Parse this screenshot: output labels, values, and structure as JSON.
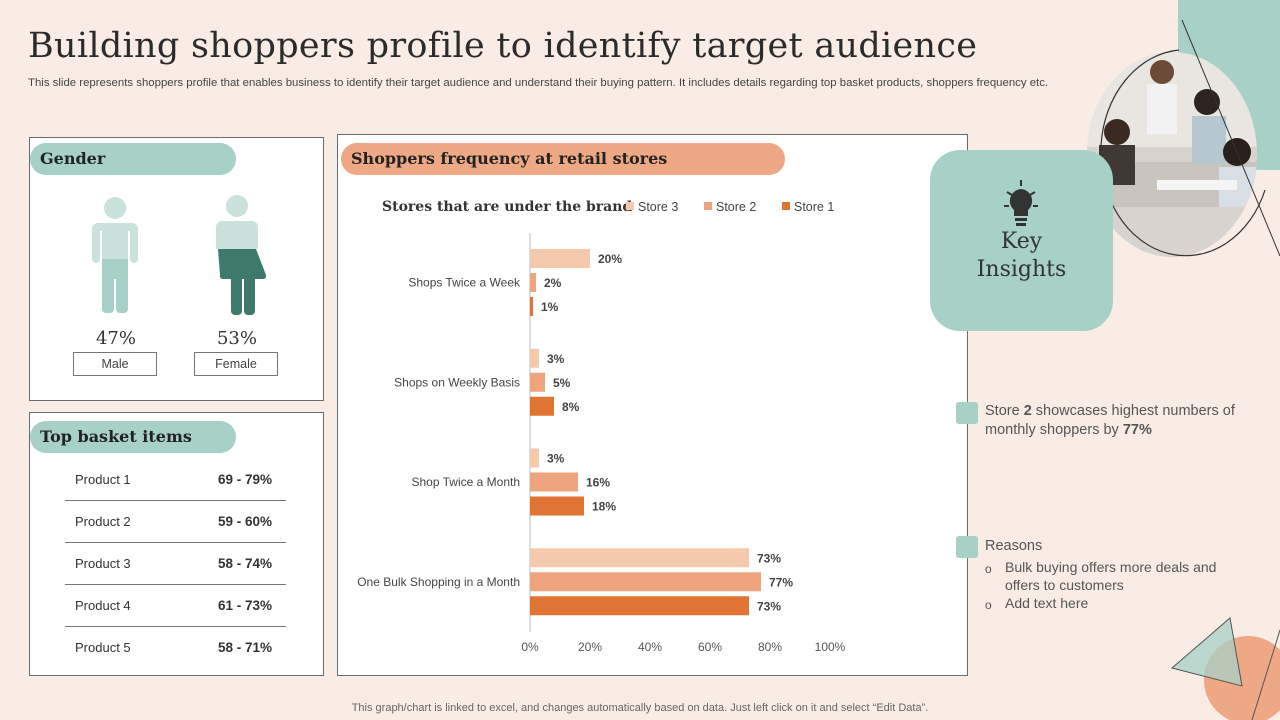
{
  "title": "Building shoppers profile to identify target audience",
  "subtitle": "This slide represents shoppers profile that enables business to identify their target audience and understand their buying pattern. It includes details regarding top basket products, shoppers frequency etc.",
  "gender": {
    "heading": "Gender",
    "male": {
      "percent": "47%",
      "label": "Male"
    },
    "female": {
      "percent": "53%",
      "label": "Female"
    }
  },
  "basket": {
    "heading": "Top basket items",
    "rows": [
      {
        "name": "Product 1",
        "value": "69 - 79%"
      },
      {
        "name": "Product 2",
        "value": "59 - 60%"
      },
      {
        "name": "Product 3",
        "value": "58 - 74%"
      },
      {
        "name": "Product 4",
        "value": "61 - 73%"
      },
      {
        "name": "Product 5",
        "value": "58 - 71%"
      }
    ]
  },
  "frequency": {
    "heading": "Shoppers frequency at retail stores"
  },
  "chart_data": {
    "type": "bar",
    "orientation": "horizontal",
    "title": "Stores that are under the brand",
    "categories": [
      "Shops Twice a Week",
      "Shops on Weekly Basis",
      "Shop Twice a Month",
      "One Bulk Shopping in a Month"
    ],
    "series": [
      {
        "name": "Store 3",
        "color": "#f4c9ac",
        "values": [
          20,
          3,
          3,
          73
        ]
      },
      {
        "name": "Store 2",
        "color": "#eea57e",
        "values": [
          2,
          5,
          16,
          77
        ]
      },
      {
        "name": "Store 1",
        "color": "#e07432",
        "values": [
          1,
          8,
          18,
          73
        ]
      }
    ],
    "legend_order": [
      "Store 3",
      "Store 2",
      "Store 1"
    ],
    "xlim": [
      0,
      100
    ],
    "x_ticks": [
      "0%",
      "20%",
      "40%",
      "60%",
      "80%",
      "100%"
    ],
    "value_suffix": "%",
    "legend_position": "top"
  },
  "key_insights": {
    "title_line1": "Key",
    "title_line2": "Insights",
    "insight1_pre": "Store ",
    "insight1_bold": "2",
    "insight1_mid": " showcases highest numbers of monthly shoppers by ",
    "insight1_bold2": "77%",
    "reasons_label": "Reasons",
    "bullets": [
      "Bulk buying offers more deals and offers to customers",
      "Add text here"
    ]
  },
  "footer": "This graph/chart is linked to excel, and changes automatically based on data. Just left click on it and select “Edit Data”.",
  "colors": {
    "teal": "#a7d0c7",
    "dark_teal": "#3e7a6c",
    "orange": "#eea884",
    "background": "#f9ece4"
  }
}
